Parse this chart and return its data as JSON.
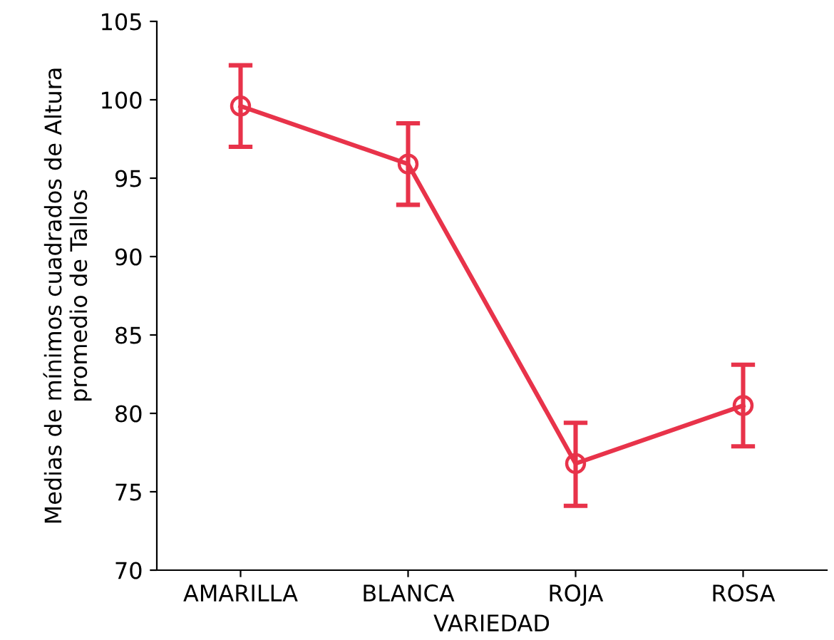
{
  "chart_data": {
    "type": "line",
    "xlabel": "VARIEDAD",
    "ylabel": "Medias de mínimos cuadrados de Altura\npromedio de Tallos",
    "categories": [
      "AMARILLA",
      "BLANCA",
      "ROJA",
      "ROSA"
    ],
    "series": [
      {
        "color": "#e8334a",
        "values": [
          99.6,
          95.9,
          76.8,
          80.5
        ],
        "errors": [
          [
            97.0,
            102.2
          ],
          [
            93.3,
            98.5
          ],
          [
            74.1,
            79.4
          ],
          [
            77.9,
            83.1
          ]
        ]
      }
    ],
    "ylim": [
      70,
      105
    ],
    "yticks": [
      70,
      75,
      80,
      85,
      90,
      95,
      100,
      105
    ],
    "grid": false,
    "legend": false,
    "marker": "circle",
    "line_style": "solid"
  }
}
